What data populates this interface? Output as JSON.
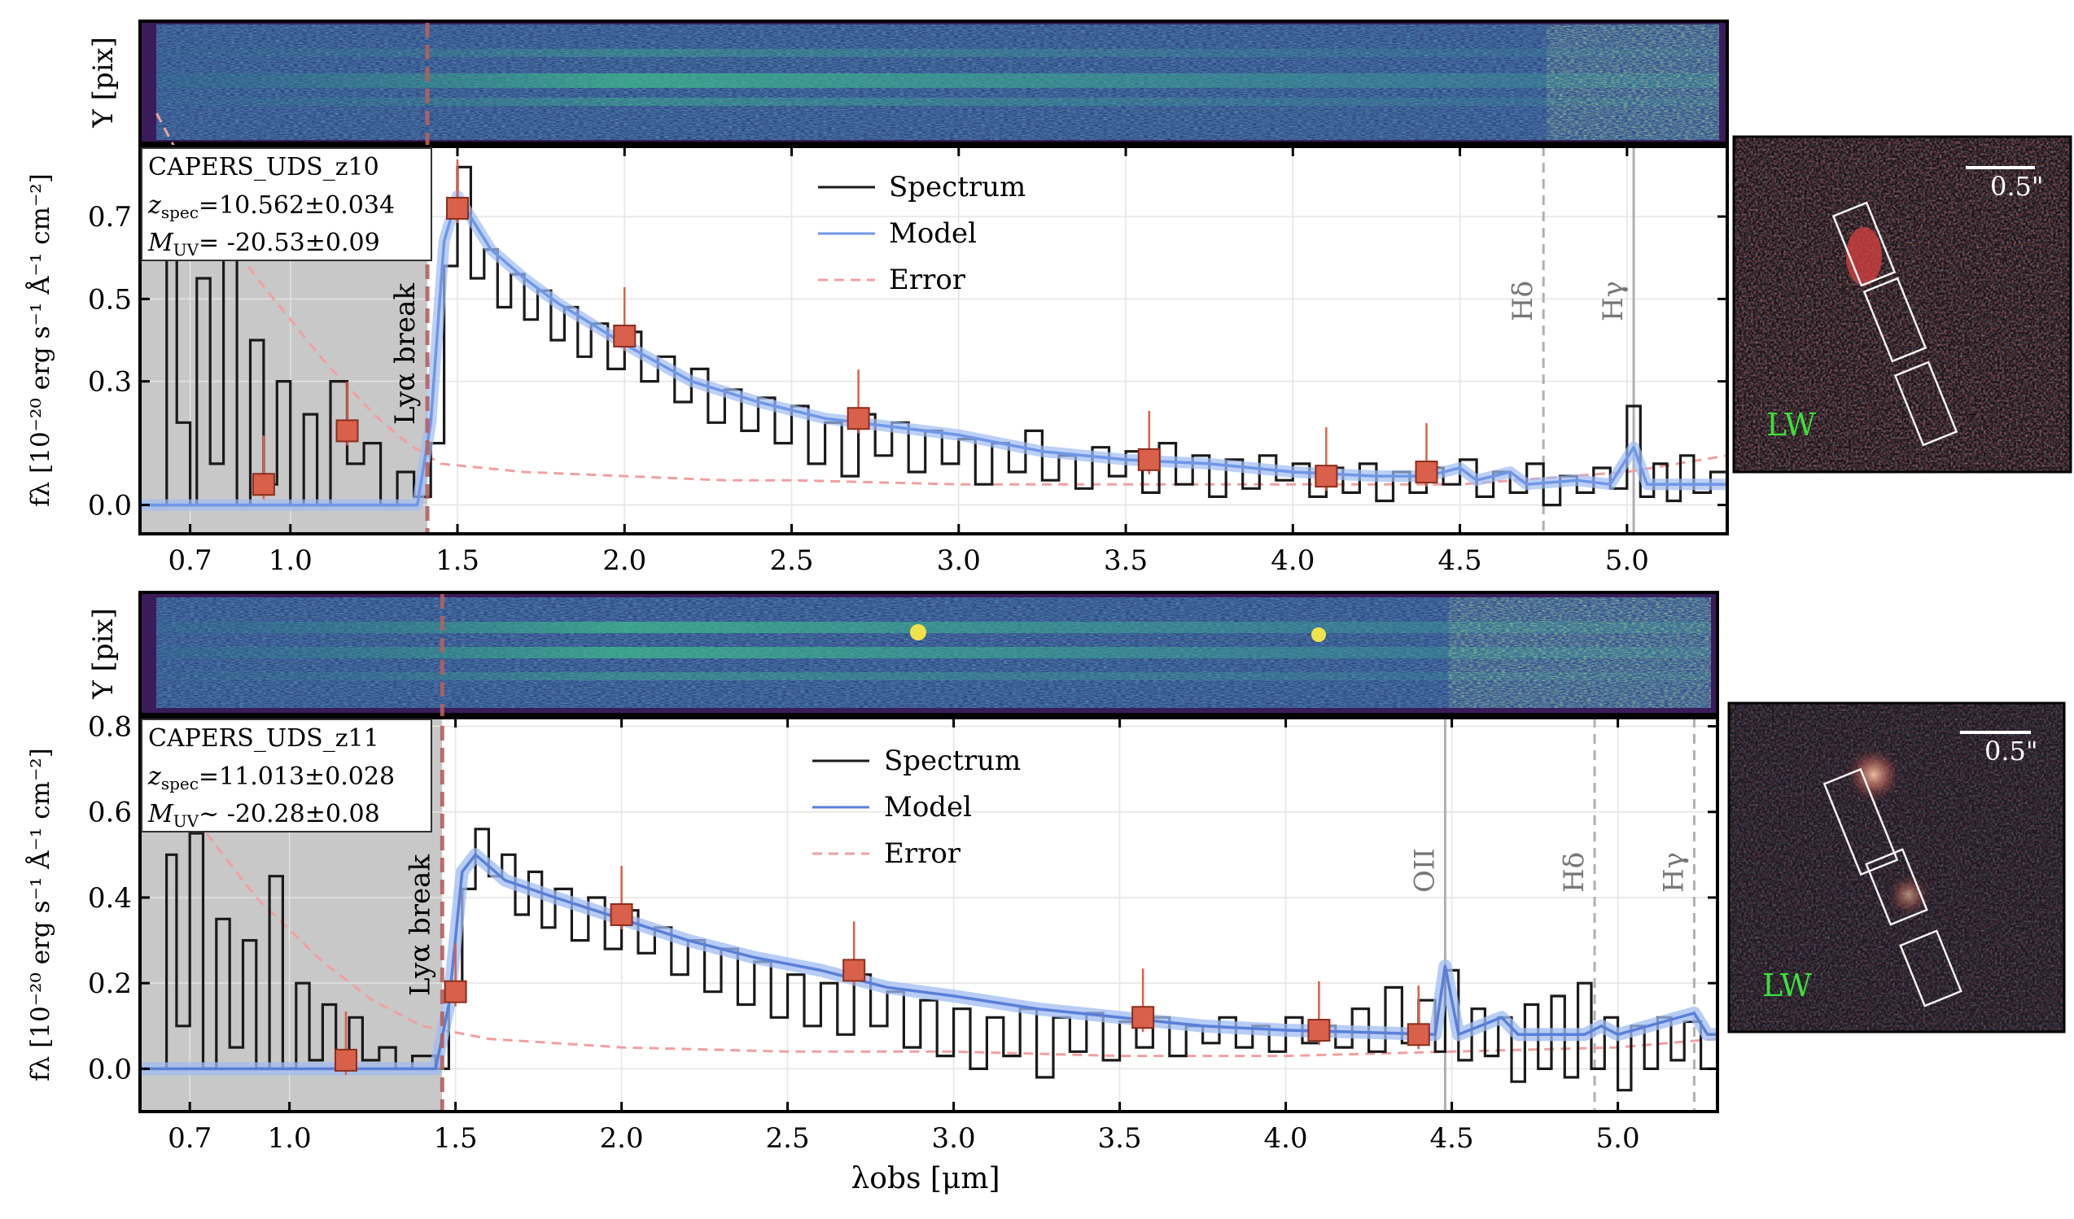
{
  "figure": {
    "xlabel": "λobs [μm]",
    "ylabel_2d": "Y [pix]",
    "ylabel_1d": "fλ [10⁻²⁰ erg s⁻¹ Å⁻¹ cm⁻²]",
    "cutout_scale": "0.5\"",
    "cutout_band": "LW",
    "colors": {
      "spectrum": "#1a1a1a",
      "model": "#6f96e8",
      "model_band": "#9fbcf2",
      "error": "#f0a0a0",
      "photometry": "#d9604a",
      "photometry_edge": "#8a2e1e",
      "break_line": "#b46060",
      "masked_region": "#c8c8c8",
      "cutout_label": "#3be03b"
    }
  },
  "chart_data": [
    {
      "type": "line",
      "object": "CAPERS_UDS_z10",
      "zspec_label": "z",
      "zspec_sub": "spec",
      "zspec_value": "=10.562±0.034",
      "muv_label": "M",
      "muv_sub": "UV",
      "muv_value": "= -20.53±0.09",
      "break_label": "Lyα break",
      "break_x": 1.41,
      "legend": [
        "Spectrum",
        "Model",
        "Error"
      ],
      "legend_position": "top-center",
      "xlim": [
        0.55,
        5.3
      ],
      "ylim": [
        -0.07,
        0.87
      ],
      "xticks": [
        0.7,
        1.0,
        1.5,
        2.0,
        2.5,
        3.0,
        3.5,
        4.0,
        4.5,
        5.0
      ],
      "xticklabels": [
        "0.7",
        "1.0",
        "1.5",
        "2.0",
        "2.5",
        "3.0",
        "3.5",
        "4.0",
        "4.5",
        "5.0"
      ],
      "yticks": [
        0.0,
        0.3,
        0.5,
        0.7
      ],
      "yticklabels": [
        "0.0",
        "0.3",
        "0.5",
        "0.7"
      ],
      "masked_range": [
        0.55,
        1.41
      ],
      "grid": true,
      "lines": [
        {
          "label": "Hδ",
          "x": 4.75,
          "style": "dashed"
        },
        {
          "label": "Hγ",
          "x": 5.02,
          "style": "solid"
        }
      ],
      "model_points": [
        [
          0.55,
          0.0
        ],
        [
          1.38,
          0.0
        ],
        [
          1.42,
          0.2
        ],
        [
          1.46,
          0.64
        ],
        [
          1.5,
          0.75
        ],
        [
          1.6,
          0.62
        ],
        [
          1.7,
          0.55
        ],
        [
          1.8,
          0.49
        ],
        [
          2.0,
          0.39
        ],
        [
          2.2,
          0.3
        ],
        [
          2.4,
          0.25
        ],
        [
          2.6,
          0.21
        ],
        [
          2.8,
          0.19
        ],
        [
          3.0,
          0.17
        ],
        [
          3.25,
          0.13
        ],
        [
          3.5,
          0.11
        ],
        [
          3.75,
          0.1
        ],
        [
          4.0,
          0.08
        ],
        [
          4.25,
          0.07
        ],
        [
          4.4,
          0.07
        ],
        [
          4.5,
          0.09
        ],
        [
          4.55,
          0.06
        ],
        [
          4.65,
          0.08
        ],
        [
          4.7,
          0.05
        ],
        [
          4.85,
          0.06
        ],
        [
          4.95,
          0.05
        ],
        [
          5.02,
          0.14
        ],
        [
          5.06,
          0.05
        ],
        [
          5.3,
          0.05
        ]
      ],
      "error_points": [
        [
          0.6,
          0.95
        ],
        [
          0.75,
          0.72
        ],
        [
          0.9,
          0.55
        ],
        [
          1.1,
          0.35
        ],
        [
          1.25,
          0.22
        ],
        [
          1.35,
          0.15
        ],
        [
          1.45,
          0.1
        ],
        [
          1.7,
          0.08
        ],
        [
          2.0,
          0.07
        ],
        [
          2.3,
          0.06
        ],
        [
          2.5,
          0.06
        ],
        [
          3.0,
          0.05
        ],
        [
          3.5,
          0.05
        ],
        [
          4.0,
          0.05
        ],
        [
          4.5,
          0.05
        ],
        [
          5.0,
          0.08
        ],
        [
          5.3,
          0.12
        ]
      ],
      "spectrum_points": [
        [
          0.6,
          0.0
        ],
        [
          0.63,
          0.62
        ],
        [
          0.66,
          0.2
        ],
        [
          0.7,
          0.0
        ],
        [
          0.72,
          0.55
        ],
        [
          0.76,
          0.1
        ],
        [
          0.8,
          0.7
        ],
        [
          0.84,
          0.0
        ],
        [
          0.88,
          0.4
        ],
        [
          0.92,
          0.05
        ],
        [
          0.96,
          0.3
        ],
        [
          1.0,
          0.0
        ],
        [
          1.04,
          0.22
        ],
        [
          1.08,
          0.0
        ],
        [
          1.12,
          0.3
        ],
        [
          1.17,
          0.1
        ],
        [
          1.22,
          0.15
        ],
        [
          1.27,
          0.0
        ],
        [
          1.32,
          0.08
        ],
        [
          1.37,
          0.02
        ],
        [
          1.42,
          0.15
        ],
        [
          1.46,
          0.58
        ],
        [
          1.5,
          0.82
        ],
        [
          1.54,
          0.55
        ],
        [
          1.58,
          0.62
        ],
        [
          1.62,
          0.48
        ],
        [
          1.66,
          0.56
        ],
        [
          1.7,
          0.45
        ],
        [
          1.74,
          0.52
        ],
        [
          1.78,
          0.4
        ],
        [
          1.82,
          0.48
        ],
        [
          1.86,
          0.36
        ],
        [
          1.9,
          0.44
        ],
        [
          1.95,
          0.33
        ],
        [
          2.0,
          0.42
        ],
        [
          2.05,
          0.3
        ],
        [
          2.1,
          0.36
        ],
        [
          2.15,
          0.25
        ],
        [
          2.2,
          0.33
        ],
        [
          2.25,
          0.2
        ],
        [
          2.3,
          0.28
        ],
        [
          2.35,
          0.18
        ],
        [
          2.4,
          0.26
        ],
        [
          2.45,
          0.15
        ],
        [
          2.5,
          0.24
        ],
        [
          2.55,
          0.1
        ],
        [
          2.6,
          0.2
        ],
        [
          2.65,
          0.07
        ],
        [
          2.7,
          0.22
        ],
        [
          2.75,
          0.12
        ],
        [
          2.8,
          0.2
        ],
        [
          2.85,
          0.08
        ],
        [
          2.9,
          0.18
        ],
        [
          2.95,
          0.1
        ],
        [
          3.0,
          0.16
        ],
        [
          3.05,
          0.05
        ],
        [
          3.1,
          0.15
        ],
        [
          3.15,
          0.08
        ],
        [
          3.2,
          0.18
        ],
        [
          3.25,
          0.06
        ],
        [
          3.3,
          0.12
        ],
        [
          3.35,
          0.04
        ],
        [
          3.4,
          0.14
        ],
        [
          3.45,
          0.07
        ],
        [
          3.5,
          0.13
        ],
        [
          3.55,
          0.03
        ],
        [
          3.6,
          0.15
        ],
        [
          3.65,
          0.05
        ],
        [
          3.7,
          0.12
        ],
        [
          3.75,
          0.02
        ],
        [
          3.8,
          0.11
        ],
        [
          3.85,
          0.04
        ],
        [
          3.9,
          0.12
        ],
        [
          3.95,
          0.06
        ],
        [
          4.0,
          0.1
        ],
        [
          4.05,
          0.02
        ],
        [
          4.1,
          0.09
        ],
        [
          4.15,
          0.03
        ],
        [
          4.2,
          0.1
        ],
        [
          4.25,
          0.01
        ],
        [
          4.3,
          0.08
        ],
        [
          4.35,
          0.03
        ],
        [
          4.4,
          0.09
        ],
        [
          4.45,
          0.05
        ],
        [
          4.5,
          0.11
        ],
        [
          4.55,
          0.02
        ],
        [
          4.6,
          0.08
        ],
        [
          4.65,
          0.03
        ],
        [
          4.7,
          0.1
        ],
        [
          4.75,
          0.0
        ],
        [
          4.8,
          0.07
        ],
        [
          4.85,
          0.03
        ],
        [
          4.9,
          0.09
        ],
        [
          4.95,
          0.04
        ],
        [
          5.0,
          0.24
        ],
        [
          5.04,
          0.02
        ],
        [
          5.08,
          0.1
        ],
        [
          5.12,
          0.01
        ],
        [
          5.16,
          0.12
        ],
        [
          5.2,
          0.03
        ],
        [
          5.25,
          0.08
        ],
        [
          5.3,
          0.05
        ]
      ],
      "photometry": [
        [
          0.92,
          0.05
        ],
        [
          1.17,
          0.18
        ],
        [
          1.5,
          0.72
        ],
        [
          2.0,
          0.41
        ],
        [
          2.7,
          0.21
        ],
        [
          3.57,
          0.11
        ],
        [
          4.1,
          0.07
        ],
        [
          4.4,
          0.08
        ]
      ]
    },
    {
      "type": "line",
      "object": "CAPERS_UDS_z11",
      "zspec_label": "z",
      "zspec_sub": "spec",
      "zspec_value": "=11.013±0.028",
      "muv_label": "M",
      "muv_sub": "UV",
      "muv_value": "~ -20.28±0.08",
      "break_label": "Lyα break",
      "break_x": 1.46,
      "legend": [
        "Spectrum",
        "Model",
        "Error"
      ],
      "legend_position": "top-center",
      "xlim": [
        0.55,
        5.3
      ],
      "ylim": [
        -0.1,
        0.82
      ],
      "xticks": [
        0.7,
        1.0,
        1.5,
        2.0,
        2.5,
        3.0,
        3.5,
        4.0,
        4.5,
        5.0
      ],
      "xticklabels": [
        "0.7",
        "1.0",
        "1.5",
        "2.0",
        "2.5",
        "3.0",
        "3.5",
        "4.0",
        "4.5",
        "5.0"
      ],
      "yticks": [
        0.0,
        0.2,
        0.4,
        0.6,
        0.8
      ],
      "yticklabels": [
        "0.0",
        "0.2",
        "0.4",
        "0.6",
        "0.8"
      ],
      "masked_range": [
        0.55,
        1.46
      ],
      "grid": true,
      "lines": [
        {
          "label": "OII",
          "x": 4.48,
          "style": "solid"
        },
        {
          "label": "Hδ",
          "x": 4.93,
          "style": "dashed"
        },
        {
          "label": "Hγ",
          "x": 5.23,
          "style": "dashed"
        }
      ],
      "model_points": [
        [
          0.55,
          0.0
        ],
        [
          1.44,
          0.0
        ],
        [
          1.48,
          0.15
        ],
        [
          1.52,
          0.46
        ],
        [
          1.56,
          0.5
        ],
        [
          1.65,
          0.44
        ],
        [
          1.8,
          0.4
        ],
        [
          2.0,
          0.35
        ],
        [
          2.2,
          0.3
        ],
        [
          2.4,
          0.26
        ],
        [
          2.6,
          0.23
        ],
        [
          2.8,
          0.19
        ],
        [
          3.0,
          0.17
        ],
        [
          3.25,
          0.14
        ],
        [
          3.5,
          0.12
        ],
        [
          3.75,
          0.1
        ],
        [
          4.0,
          0.09
        ],
        [
          4.25,
          0.085
        ],
        [
          4.45,
          0.08
        ],
        [
          4.48,
          0.24
        ],
        [
          4.52,
          0.08
        ],
        [
          4.65,
          0.12
        ],
        [
          4.7,
          0.08
        ],
        [
          4.9,
          0.08
        ],
        [
          4.95,
          0.1
        ],
        [
          5.0,
          0.08
        ],
        [
          5.23,
          0.13
        ],
        [
          5.27,
          0.08
        ],
        [
          5.3,
          0.08
        ]
      ],
      "error_points": [
        [
          0.6,
          0.7
        ],
        [
          0.75,
          0.55
        ],
        [
          0.9,
          0.4
        ],
        [
          1.1,
          0.25
        ],
        [
          1.25,
          0.16
        ],
        [
          1.4,
          0.1
        ],
        [
          1.6,
          0.07
        ],
        [
          2.0,
          0.05
        ],
        [
          2.5,
          0.04
        ],
        [
          3.0,
          0.04
        ],
        [
          3.5,
          0.03
        ],
        [
          4.0,
          0.03
        ],
        [
          4.5,
          0.04
        ],
        [
          5.0,
          0.05
        ],
        [
          5.3,
          0.07
        ]
      ],
      "spectrum_points": [
        [
          0.6,
          0.0
        ],
        [
          0.63,
          0.5
        ],
        [
          0.66,
          0.1
        ],
        [
          0.7,
          0.55
        ],
        [
          0.74,
          0.0
        ],
        [
          0.78,
          0.35
        ],
        [
          0.82,
          0.05
        ],
        [
          0.86,
          0.3
        ],
        [
          0.9,
          0.0
        ],
        [
          0.94,
          0.45
        ],
        [
          0.98,
          0.0
        ],
        [
          1.02,
          0.2
        ],
        [
          1.06,
          0.02
        ],
        [
          1.1,
          0.15
        ],
        [
          1.14,
          0.0
        ],
        [
          1.18,
          0.12
        ],
        [
          1.22,
          0.02
        ],
        [
          1.27,
          0.05
        ],
        [
          1.32,
          0.0
        ],
        [
          1.37,
          0.03
        ],
        [
          1.44,
          0.0
        ],
        [
          1.48,
          0.18
        ],
        [
          1.52,
          0.42
        ],
        [
          1.56,
          0.56
        ],
        [
          1.6,
          0.45
        ],
        [
          1.64,
          0.5
        ],
        [
          1.68,
          0.36
        ],
        [
          1.72,
          0.46
        ],
        [
          1.76,
          0.33
        ],
        [
          1.8,
          0.42
        ],
        [
          1.85,
          0.3
        ],
        [
          1.9,
          0.4
        ],
        [
          1.95,
          0.28
        ],
        [
          2.0,
          0.37
        ],
        [
          2.05,
          0.27
        ],
        [
          2.1,
          0.33
        ],
        [
          2.15,
          0.22
        ],
        [
          2.2,
          0.3
        ],
        [
          2.25,
          0.18
        ],
        [
          2.3,
          0.28
        ],
        [
          2.35,
          0.15
        ],
        [
          2.4,
          0.25
        ],
        [
          2.45,
          0.12
        ],
        [
          2.5,
          0.22
        ],
        [
          2.55,
          0.1
        ],
        [
          2.6,
          0.2
        ],
        [
          2.65,
          0.08
        ],
        [
          2.7,
          0.22
        ],
        [
          2.75,
          0.1
        ],
        [
          2.8,
          0.18
        ],
        [
          2.85,
          0.05
        ],
        [
          2.9,
          0.16
        ],
        [
          2.95,
          0.03
        ],
        [
          3.0,
          0.14
        ],
        [
          3.05,
          0.0
        ],
        [
          3.1,
          0.12
        ],
        [
          3.15,
          0.03
        ],
        [
          3.2,
          0.14
        ],
        [
          3.25,
          -0.02
        ],
        [
          3.3,
          0.12
        ],
        [
          3.35,
          0.04
        ],
        [
          3.4,
          0.13
        ],
        [
          3.45,
          0.02
        ],
        [
          3.5,
          0.11
        ],
        [
          3.55,
          0.05
        ],
        [
          3.6,
          0.12
        ],
        [
          3.65,
          0.03
        ],
        [
          3.7,
          0.1
        ],
        [
          3.75,
          0.06
        ],
        [
          3.8,
          0.12
        ],
        [
          3.85,
          0.05
        ],
        [
          3.9,
          0.1
        ],
        [
          3.95,
          0.04
        ],
        [
          4.0,
          0.12
        ],
        [
          4.05,
          0.06
        ],
        [
          4.1,
          0.1
        ],
        [
          4.15,
          0.05
        ],
        [
          4.2,
          0.14
        ],
        [
          4.25,
          0.04
        ],
        [
          4.3,
          0.19
        ],
        [
          4.35,
          0.06
        ],
        [
          4.4,
          0.16
        ],
        [
          4.45,
          0.04
        ],
        [
          4.48,
          0.23
        ],
        [
          4.52,
          0.02
        ],
        [
          4.56,
          0.14
        ],
        [
          4.6,
          0.03
        ],
        [
          4.64,
          0.12
        ],
        [
          4.68,
          -0.03
        ],
        [
          4.72,
          0.15
        ],
        [
          4.76,
          0.0
        ],
        [
          4.8,
          0.17
        ],
        [
          4.84,
          -0.02
        ],
        [
          4.88,
          0.2
        ],
        [
          4.92,
          0.0
        ],
        [
          4.96,
          0.12
        ],
        [
          5.0,
          -0.05
        ],
        [
          5.04,
          0.1
        ],
        [
          5.08,
          0.0
        ],
        [
          5.12,
          0.12
        ],
        [
          5.16,
          0.02
        ],
        [
          5.2,
          0.11
        ],
        [
          5.25,
          0.0
        ],
        [
          5.3,
          0.08
        ]
      ],
      "photometry": [
        [
          1.17,
          0.02
        ],
        [
          1.5,
          0.18
        ],
        [
          2.0,
          0.36
        ],
        [
          2.7,
          0.23
        ],
        [
          3.57,
          0.12
        ],
        [
          4.1,
          0.09
        ],
        [
          4.4,
          0.08
        ]
      ]
    }
  ]
}
